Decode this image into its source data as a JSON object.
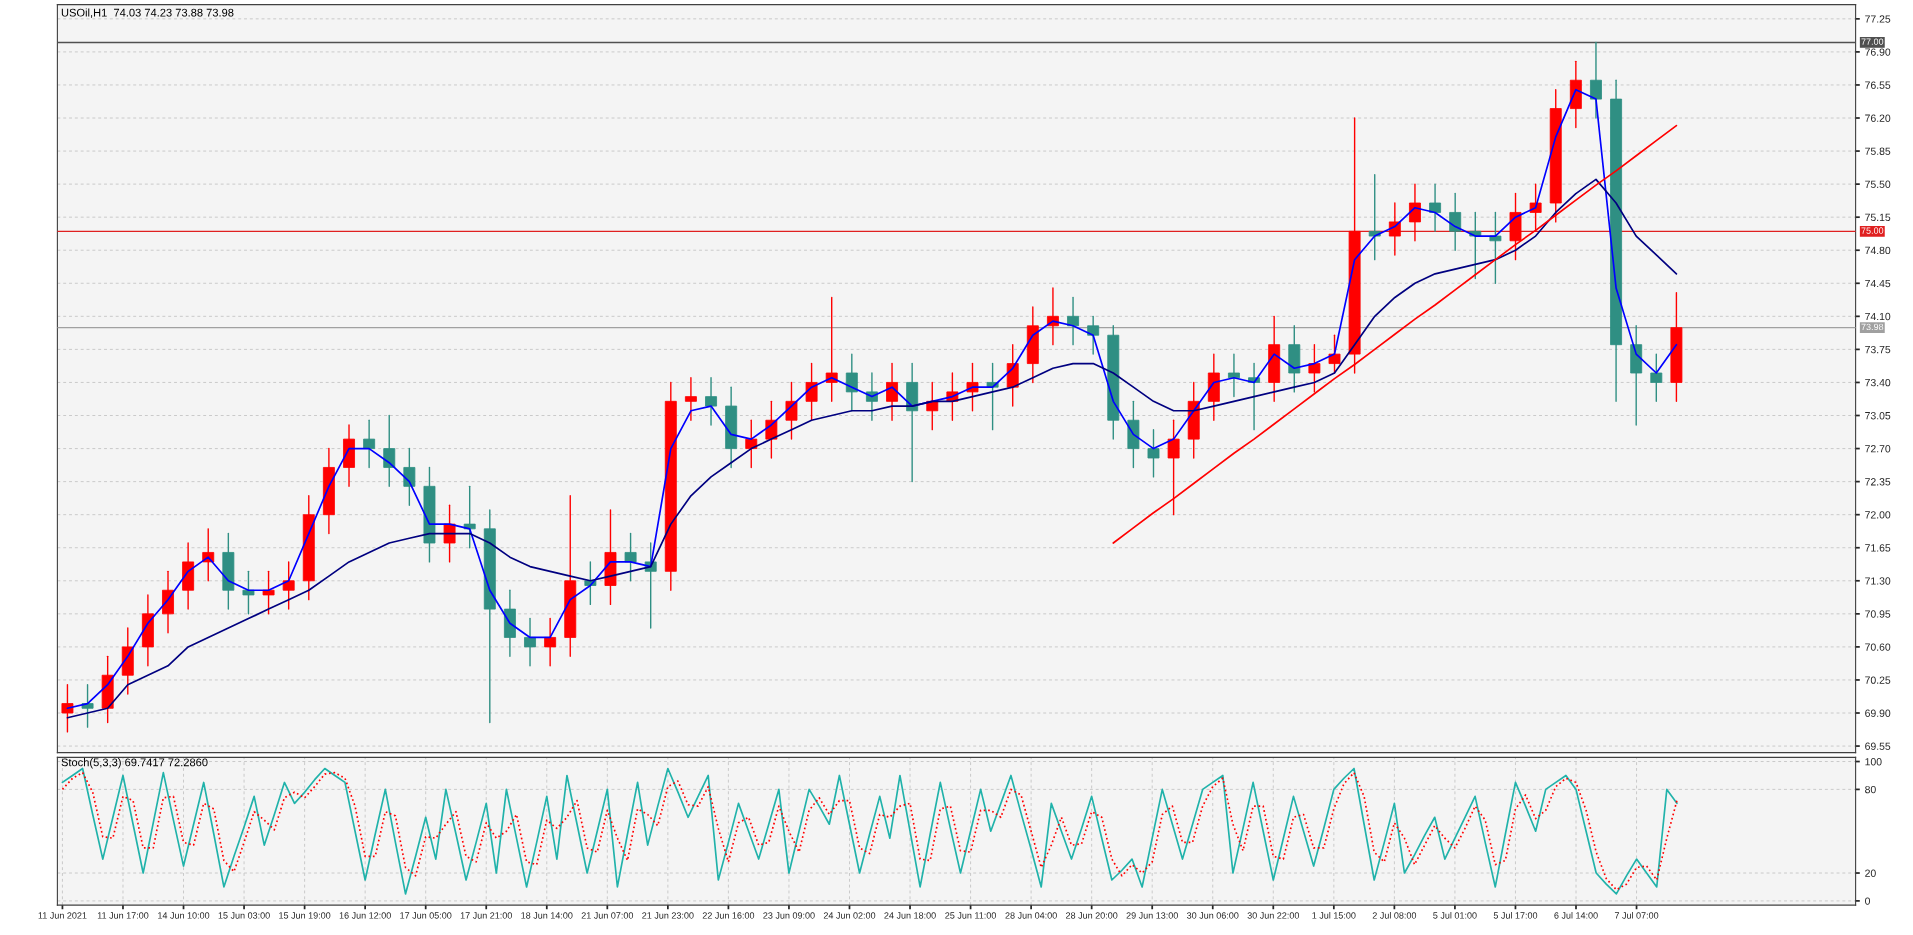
{
  "chart_data": [
    {
      "type": "candlestick",
      "title": "USOil,H1  74.03 74.23 73.88 73.98",
      "grid": true,
      "tick_labels": "y",
      "categories": [
        null,
        null,
        null,
        null,
        null,
        null,
        null,
        null,
        null,
        null,
        null,
        null,
        null,
        null,
        null,
        null,
        null,
        null,
        null,
        null,
        null,
        null,
        null,
        null,
        null,
        null,
        null,
        null,
        null,
        null,
        null,
        null,
        null,
        null,
        null,
        null,
        null,
        null,
        null,
        null,
        null,
        null,
        null,
        null,
        null,
        null,
        null,
        null,
        null,
        null,
        null,
        null,
        null,
        null,
        null,
        null,
        null,
        null,
        null,
        null,
        null,
        null,
        null,
        null,
        null,
        null,
        null,
        null,
        null,
        null,
        null,
        null,
        null,
        null,
        null,
        null,
        null,
        null,
        null,
        null,
        null
      ],
      "ylim": [
        69.48,
        77.4
      ],
      "yticks": [
        {
          "value": 69.55,
          "label": "69.55"
        },
        {
          "value": 69.9,
          "label": "69.90"
        },
        {
          "value": 70.25,
          "label": "70.25"
        },
        {
          "value": 70.6,
          "label": "70.60"
        },
        {
          "value": 70.95,
          "label": "70.95"
        },
        {
          "value": 71.3,
          "label": "71.30"
        },
        {
          "value": 71.65,
          "label": "71.65"
        },
        {
          "value": 72.0,
          "label": "72.00"
        },
        {
          "value": 72.35,
          "label": "72.35"
        },
        {
          "value": 72.7,
          "label": "72.70"
        },
        {
          "value": 73.05,
          "label": "73.05"
        },
        {
          "value": 73.4,
          "label": "73.40"
        },
        {
          "value": 73.75,
          "label": "73.75"
        },
        {
          "value": 74.1,
          "label": "74.10"
        },
        {
          "value": 74.45,
          "label": "74.45"
        },
        {
          "value": 74.8,
          "label": "74.80"
        },
        {
          "value": 75.15,
          "label": "75.15"
        },
        {
          "value": 75.5,
          "label": "75.50"
        },
        {
          "value": 75.85,
          "label": "75.85"
        },
        {
          "value": 76.2,
          "label": "76.20"
        },
        {
          "value": 76.55,
          "label": "76.55"
        },
        {
          "value": 76.9,
          "label": "76.90"
        },
        {
          "value": 77.25,
          "label": "77.25"
        }
      ],
      "ref_lines": [
        {
          "axis": "y",
          "value": 77.0,
          "label": "77.00",
          "color": "#505050",
          "line_style": "solid"
        },
        {
          "axis": "y",
          "value": 75.0,
          "label": "75.00",
          "color": "#e02020",
          "line_style": "solid"
        },
        {
          "axis": "y",
          "value": 73.98,
          "label": "73.98",
          "color": "#a0a0a0",
          "line_style": "solid"
        }
      ],
      "series": [
        {
          "ohlc": [
            [
              69.9,
              70.2,
              69.7,
              70.0
            ],
            [
              70.0,
              70.2,
              69.75,
              69.95
            ],
            [
              69.95,
              70.5,
              69.8,
              70.3
            ],
            [
              70.3,
              70.8,
              70.1,
              70.6
            ],
            [
              70.6,
              71.15,
              70.4,
              70.95
            ],
            [
              70.95,
              71.4,
              70.75,
              71.2
            ],
            [
              71.2,
              71.7,
              71.0,
              71.5
            ],
            [
              71.5,
              71.85,
              71.3,
              71.6
            ],
            [
              71.6,
              71.8,
              71.0,
              71.2
            ],
            [
              71.2,
              71.4,
              70.95,
              71.15
            ],
            [
              71.15,
              71.4,
              70.95,
              71.2
            ],
            [
              71.2,
              71.5,
              71.0,
              71.3
            ],
            [
              71.3,
              72.2,
              71.1,
              72.0
            ],
            [
              72.0,
              72.7,
              71.8,
              72.5
            ],
            [
              72.5,
              72.95,
              72.3,
              72.8
            ],
            [
              72.8,
              73.0,
              72.5,
              72.7
            ],
            [
              72.7,
              73.05,
              72.3,
              72.5
            ],
            [
              72.5,
              72.7,
              72.1,
              72.3
            ],
            [
              72.3,
              72.5,
              71.5,
              71.7
            ],
            [
              71.7,
              72.1,
              71.5,
              71.9
            ],
            [
              71.9,
              72.3,
              71.65,
              71.85
            ],
            [
              71.85,
              72.05,
              69.8,
              71.0
            ],
            [
              71.0,
              71.2,
              70.5,
              70.7
            ],
            [
              70.7,
              70.9,
              70.4,
              70.6
            ],
            [
              70.6,
              70.9,
              70.4,
              70.7
            ],
            [
              70.7,
              72.2,
              70.5,
              71.3
            ],
            [
              71.3,
              71.5,
              71.05,
              71.25
            ],
            [
              71.25,
              72.05,
              71.05,
              71.6
            ],
            [
              71.6,
              71.8,
              71.3,
              71.5
            ],
            [
              71.5,
              71.7,
              70.8,
              71.4
            ],
            [
              71.4,
              73.4,
              71.2,
              73.2
            ],
            [
              73.2,
              73.45,
              73.0,
              73.25
            ],
            [
              73.25,
              73.45,
              72.95,
              73.15
            ],
            [
              73.15,
              73.35,
              72.5,
              72.7
            ],
            [
              72.7,
              73.0,
              72.5,
              72.8
            ],
            [
              72.8,
              73.2,
              72.6,
              73.0
            ],
            [
              73.0,
              73.4,
              72.8,
              73.2
            ],
            [
              73.2,
              73.6,
              73.0,
              73.4
            ],
            [
              73.4,
              74.3,
              73.2,
              73.5
            ],
            [
              73.5,
              73.7,
              73.1,
              73.3
            ],
            [
              73.3,
              73.5,
              73.0,
              73.2
            ],
            [
              73.2,
              73.6,
              73.0,
              73.4
            ],
            [
              73.4,
              73.6,
              72.35,
              73.1
            ],
            [
              73.1,
              73.4,
              72.9,
              73.2
            ],
            [
              73.2,
              73.5,
              73.0,
              73.3
            ],
            [
              73.3,
              73.6,
              73.1,
              73.4
            ],
            [
              73.4,
              73.6,
              72.9,
              73.35
            ],
            [
              73.35,
              73.8,
              73.15,
              73.6
            ],
            [
              73.6,
              74.2,
              73.4,
              74.0
            ],
            [
              74.0,
              74.4,
              73.8,
              74.1
            ],
            [
              74.1,
              74.3,
              73.8,
              74.0
            ],
            [
              74.0,
              74.1,
              73.7,
              73.9
            ],
            [
              73.9,
              74.0,
              72.8,
              73.0
            ],
            [
              73.0,
              73.2,
              72.5,
              72.7
            ],
            [
              72.7,
              72.9,
              72.4,
              72.6
            ],
            [
              72.6,
              73.0,
              72.0,
              72.8
            ],
            [
              72.8,
              73.4,
              72.6,
              73.2
            ],
            [
              73.2,
              73.7,
              73.0,
              73.5
            ],
            [
              73.5,
              73.7,
              73.25,
              73.45
            ],
            [
              73.45,
              73.6,
              72.9,
              73.4
            ],
            [
              73.4,
              74.1,
              73.2,
              73.8
            ],
            [
              73.8,
              74.0,
              73.3,
              73.5
            ],
            [
              73.5,
              73.8,
              73.3,
              73.6
            ],
            [
              73.6,
              73.9,
              73.5,
              73.7
            ],
            [
              73.7,
              76.2,
              73.5,
              75.0
            ],
            [
              75.0,
              75.6,
              74.7,
              74.95
            ],
            [
              74.95,
              75.3,
              74.75,
              75.1
            ],
            [
              75.1,
              75.5,
              74.9,
              75.3
            ],
            [
              75.3,
              75.5,
              75.0,
              75.2
            ],
            [
              75.2,
              75.4,
              74.8,
              75.0
            ],
            [
              75.0,
              75.2,
              74.5,
              74.95
            ],
            [
              74.95,
              75.2,
              74.45,
              74.9
            ],
            [
              74.9,
              75.4,
              74.7,
              75.2
            ],
            [
              75.2,
              75.5,
              75.0,
              75.3
            ],
            [
              75.3,
              76.5,
              75.1,
              76.3
            ],
            [
              76.3,
              76.8,
              76.1,
              76.6
            ],
            [
              76.6,
              77.0,
              76.2,
              76.4
            ],
            [
              76.4,
              76.6,
              73.2,
              73.8
            ],
            [
              73.8,
              74.0,
              72.95,
              73.5
            ],
            [
              73.5,
              73.7,
              73.2,
              73.4
            ],
            [
              73.4,
              74.35,
              73.2,
              73.98
            ]
          ],
          "colors": [
            "#ff0000",
            "#2f8f83",
            "#ff0000",
            "#ff0000",
            "#ff0000",
            "#ff0000",
            "#ff0000",
            "#ff0000",
            "#2f8f83",
            "#2f8f83",
            "#ff0000",
            "#ff0000",
            "#ff0000",
            "#ff0000",
            "#ff0000",
            "#2f8f83",
            "#2f8f83",
            "#2f8f83",
            "#2f8f83",
            "#ff0000",
            "#2f8f83",
            "#2f8f83",
            "#2f8f83",
            "#2f8f83",
            "#ff0000",
            "#ff0000",
            "#2f8f83",
            "#ff0000",
            "#2f8f83",
            "#2f8f83",
            "#ff0000",
            "#ff0000",
            "#2f8f83",
            "#2f8f83",
            "#ff0000",
            "#ff0000",
            "#ff0000",
            "#ff0000",
            "#ff0000",
            "#2f8f83",
            "#2f8f83",
            "#ff0000",
            "#2f8f83",
            "#ff0000",
            "#ff0000",
            "#ff0000",
            "#2f8f83",
            "#ff0000",
            "#ff0000",
            "#ff0000",
            "#2f8f83",
            "#2f8f83",
            "#2f8f83",
            "#2f8f83",
            "#2f8f83",
            "#ff0000",
            "#ff0000",
            "#ff0000",
            "#2f8f83",
            "#2f8f83",
            "#ff0000",
            "#2f8f83",
            "#ff0000",
            "#ff0000",
            "#ff0000",
            "#2f8f83",
            "#ff0000",
            "#ff0000",
            "#2f8f83",
            "#2f8f83",
            "#2f8f83",
            "#2f8f83",
            "#ff0000",
            "#ff0000",
            "#ff0000",
            "#ff0000",
            "#2f8f83",
            "#2f8f83",
            "#2f8f83",
            "#2f8f83",
            "#ff0000"
          ]
        },
        {
          "type": "line",
          "color": "#0000ff",
          "line_style": "solid",
          "values": [
            69.95,
            70.0,
            70.2,
            70.5,
            70.85,
            71.1,
            71.4,
            71.55,
            71.3,
            71.2,
            71.2,
            71.3,
            71.8,
            72.3,
            72.7,
            72.7,
            72.55,
            72.35,
            71.9,
            71.9,
            71.85,
            71.2,
            70.85,
            70.7,
            70.7,
            71.1,
            71.25,
            71.5,
            71.5,
            71.45,
            72.7,
            73.1,
            73.15,
            72.85,
            72.8,
            72.95,
            73.15,
            73.35,
            73.45,
            73.35,
            73.25,
            73.35,
            73.15,
            73.2,
            73.25,
            73.35,
            73.35,
            73.55,
            73.9,
            74.05,
            74.0,
            73.9,
            73.2,
            72.85,
            72.7,
            72.8,
            73.1,
            73.4,
            73.45,
            73.4,
            73.7,
            73.55,
            73.6,
            73.7,
            74.7,
            74.95,
            75.05,
            75.25,
            75.2,
            75.05,
            74.95,
            74.95,
            75.15,
            75.25,
            76.0,
            76.5,
            76.4,
            74.4,
            73.7,
            73.5,
            73.8
          ]
        },
        {
          "type": "line",
          "color": "#000080",
          "line_style": "solid",
          "values": [
            69.85,
            69.9,
            69.95,
            70.2,
            70.3,
            70.4,
            70.6,
            70.7,
            70.8,
            70.9,
            71.0,
            71.1,
            71.2,
            71.35,
            71.5,
            71.6,
            71.7,
            71.75,
            71.8,
            71.8,
            71.8,
            71.7,
            71.55,
            71.45,
            71.4,
            71.35,
            71.3,
            71.35,
            71.4,
            71.45,
            71.9,
            72.2,
            72.4,
            72.55,
            72.7,
            72.8,
            72.9,
            73.0,
            73.05,
            73.1,
            73.1,
            73.15,
            73.15,
            73.2,
            73.2,
            73.25,
            73.3,
            73.35,
            73.45,
            73.55,
            73.6,
            73.6,
            73.5,
            73.35,
            73.2,
            73.1,
            73.1,
            73.15,
            73.2,
            73.25,
            73.3,
            73.35,
            73.4,
            73.5,
            73.8,
            74.1,
            74.3,
            74.45,
            74.55,
            74.6,
            74.65,
            74.7,
            74.8,
            74.95,
            75.2,
            75.4,
            75.55,
            75.3,
            74.95,
            74.75,
            74.55
          ]
        },
        {
          "type": "line",
          "color": "#ff0000",
          "line_style": "solid",
          "values": [
            null,
            null,
            null,
            null,
            null,
            null,
            null,
            null,
            null,
            null,
            null,
            null,
            null,
            null,
            null,
            null,
            null,
            null,
            null,
            null,
            null,
            null,
            null,
            null,
            null,
            null,
            null,
            null,
            null,
            null,
            null,
            null,
            null,
            null,
            null,
            null,
            null,
            null,
            null,
            null,
            null,
            null,
            null,
            null,
            null,
            null,
            null,
            null,
            null,
            null,
            null,
            null,
            71.7,
            71.86,
            72.02,
            72.17,
            72.33,
            72.49,
            72.65,
            72.8,
            72.96,
            73.12,
            73.28,
            73.44,
            73.59,
            73.75,
            73.91,
            74.07,
            74.22,
            74.38,
            74.54,
            74.7,
            74.86,
            75.01,
            75.17,
            75.33,
            75.49,
            75.64,
            75.8,
            75.96,
            76.12
          ]
        }
      ]
    },
    {
      "type": "line",
      "title": "Stoch(5,3,3) 69.7417 72.2860",
      "grid": true,
      "categories": [
        "11 Jun 2021",
        null,
        null,
        null,
        null,
        null,
        "11 Jun 17:00",
        null,
        null,
        null,
        null,
        null,
        "14 Jun 10:00",
        null,
        null,
        null,
        null,
        null,
        "15 Jun 03:00",
        null,
        null,
        null,
        null,
        null,
        "15 Jun 19:00",
        null,
        null,
        null,
        null,
        null,
        "16 Jun 12:00",
        null,
        null,
        null,
        null,
        null,
        "17 Jun 05:00",
        null,
        null,
        null,
        null,
        null,
        "17 Jun 21:00",
        null,
        null,
        null,
        null,
        null,
        "18 Jun 14:00",
        null,
        null,
        null,
        null,
        null,
        "21 Jun 07:00",
        null,
        null,
        null,
        null,
        null,
        "21 Jun 23:00",
        null,
        null,
        null,
        null,
        null,
        "22 Jun 16:00",
        null,
        null,
        null,
        null,
        null,
        "23 Jun 09:00",
        null,
        null,
        null,
        null,
        null,
        "24 Jun 02:00",
        null,
        null,
        null,
        null,
        null,
        "24 Jun 18:00",
        null,
        null,
        null,
        null,
        null,
        "25 Jun 11:00",
        null,
        null,
        null,
        null,
        null,
        "28 Jun 04:00",
        null,
        null,
        null,
        null,
        null,
        "28 Jun 20:00",
        null,
        null,
        null,
        null,
        null,
        "29 Jun 13:00",
        null,
        null,
        null,
        null,
        null,
        "30 Jun 06:00",
        null,
        null,
        null,
        null,
        null,
        "30 Jun 22:00",
        null,
        null,
        null,
        null,
        null,
        "1 Jul 15:00",
        null,
        null,
        null,
        null,
        null,
        "2 Jul 08:00",
        null,
        null,
        null,
        null,
        null,
        "5 Jul 01:00",
        null,
        null,
        null,
        null,
        null,
        "5 Jul 17:00",
        null,
        null,
        null,
        null,
        null,
        "6 Jul 14:00",
        null,
        null,
        null,
        null,
        null,
        "7 Jul 07:00",
        null,
        null,
        null,
        null
      ],
      "ylim": [
        -3,
        103
      ],
      "yticks": [
        100,
        80,
        20,
        0
      ],
      "series": [
        {
          "color": "#20b2aa",
          "line_style": "solid",
          "values": [
            85,
            90,
            95,
            62,
            30,
            60,
            90,
            55,
            20,
            56,
            92,
            58,
            25,
            55,
            85,
            48,
            10,
            32,
            53,
            75,
            40,
            62,
            85,
            70,
            78,
            87,
            95,
            90,
            85,
            50,
            15,
            48,
            80,
            42,
            5,
            32,
            60,
            30,
            80,
            48,
            15,
            42,
            70,
            20,
            80,
            45,
            10,
            42,
            75,
            30,
            90,
            55,
            20,
            50,
            80,
            10,
            48,
            85,
            40,
            68,
            95,
            78,
            60,
            75,
            90,
            15,
            42,
            70,
            50,
            30,
            55,
            80,
            20,
            50,
            80,
            68,
            55,
            90,
            55,
            20,
            48,
            75,
            45,
            90,
            50,
            10,
            48,
            85,
            52,
            20,
            50,
            80,
            50,
            70,
            90,
            63,
            37,
            10,
            70,
            50,
            30,
            52,
            75,
            45,
            15,
            22,
            30,
            10,
            45,
            80,
            55,
            30,
            55,
            80,
            85,
            90,
            20,
            52,
            85,
            50,
            15,
            45,
            75,
            50,
            25,
            52,
            80,
            88,
            95,
            55,
            15,
            42,
            70,
            20,
            33,
            47,
            60,
            30,
            45,
            60,
            75,
            42,
            10,
            48,
            85,
            68,
            50,
            80,
            85,
            90,
            80,
            50,
            20,
            12,
            5,
            18,
            30,
            20,
            10,
            80,
            70
          ]
        },
        {
          "color": "#ff0000",
          "line_style": "dotted",
          "values": [
            80,
            88,
            92,
            78,
            46,
            45,
            75,
            72,
            38,
            38,
            74,
            75,
            42,
            40,
            70,
            66,
            29,
            21,
            42,
            64,
            58,
            51,
            74,
            78,
            74,
            82,
            91,
            92,
            88,
            68,
            32,
            32,
            64,
            61,
            24,
            18,
            46,
            45,
            55,
            64,
            32,
            28,
            56,
            45,
            50,
            62,
            28,
            26,
            58,
            52,
            60,
            72,
            38,
            35,
            65,
            45,
            29,
            66,
            62,
            54,
            82,
            86,
            69,
            68,
            82,
            52,
            28,
            56,
            60,
            40,
            42,
            68,
            50,
            35,
            65,
            74,
            62,
            72,
            72,
            38,
            34,
            62,
            60,
            68,
            70,
            30,
            29,
            66,
            68,
            36,
            35,
            65,
            65,
            60,
            80,
            76,
            50,
            24,
            40,
            60,
            40,
            41,
            64,
            60,
            30,
            18,
            26,
            20,
            28,
            62,
            68,
            42,
            42,
            68,
            82,
            88,
            55,
            36,
            68,
            68,
            32,
            30,
            60,
            62,
            38,
            38,
            66,
            84,
            92,
            75,
            35,
            28,
            56,
            45,
            26,
            40,
            54,
            45,
            38,
            52,
            68,
            58,
            26,
            29,
            66,
            76,
            59,
            65,
            82,
            88,
            85,
            65,
            35,
            16,
            8,
            12,
            24,
            25,
            15,
            45,
            72
          ]
        }
      ]
    }
  ]
}
